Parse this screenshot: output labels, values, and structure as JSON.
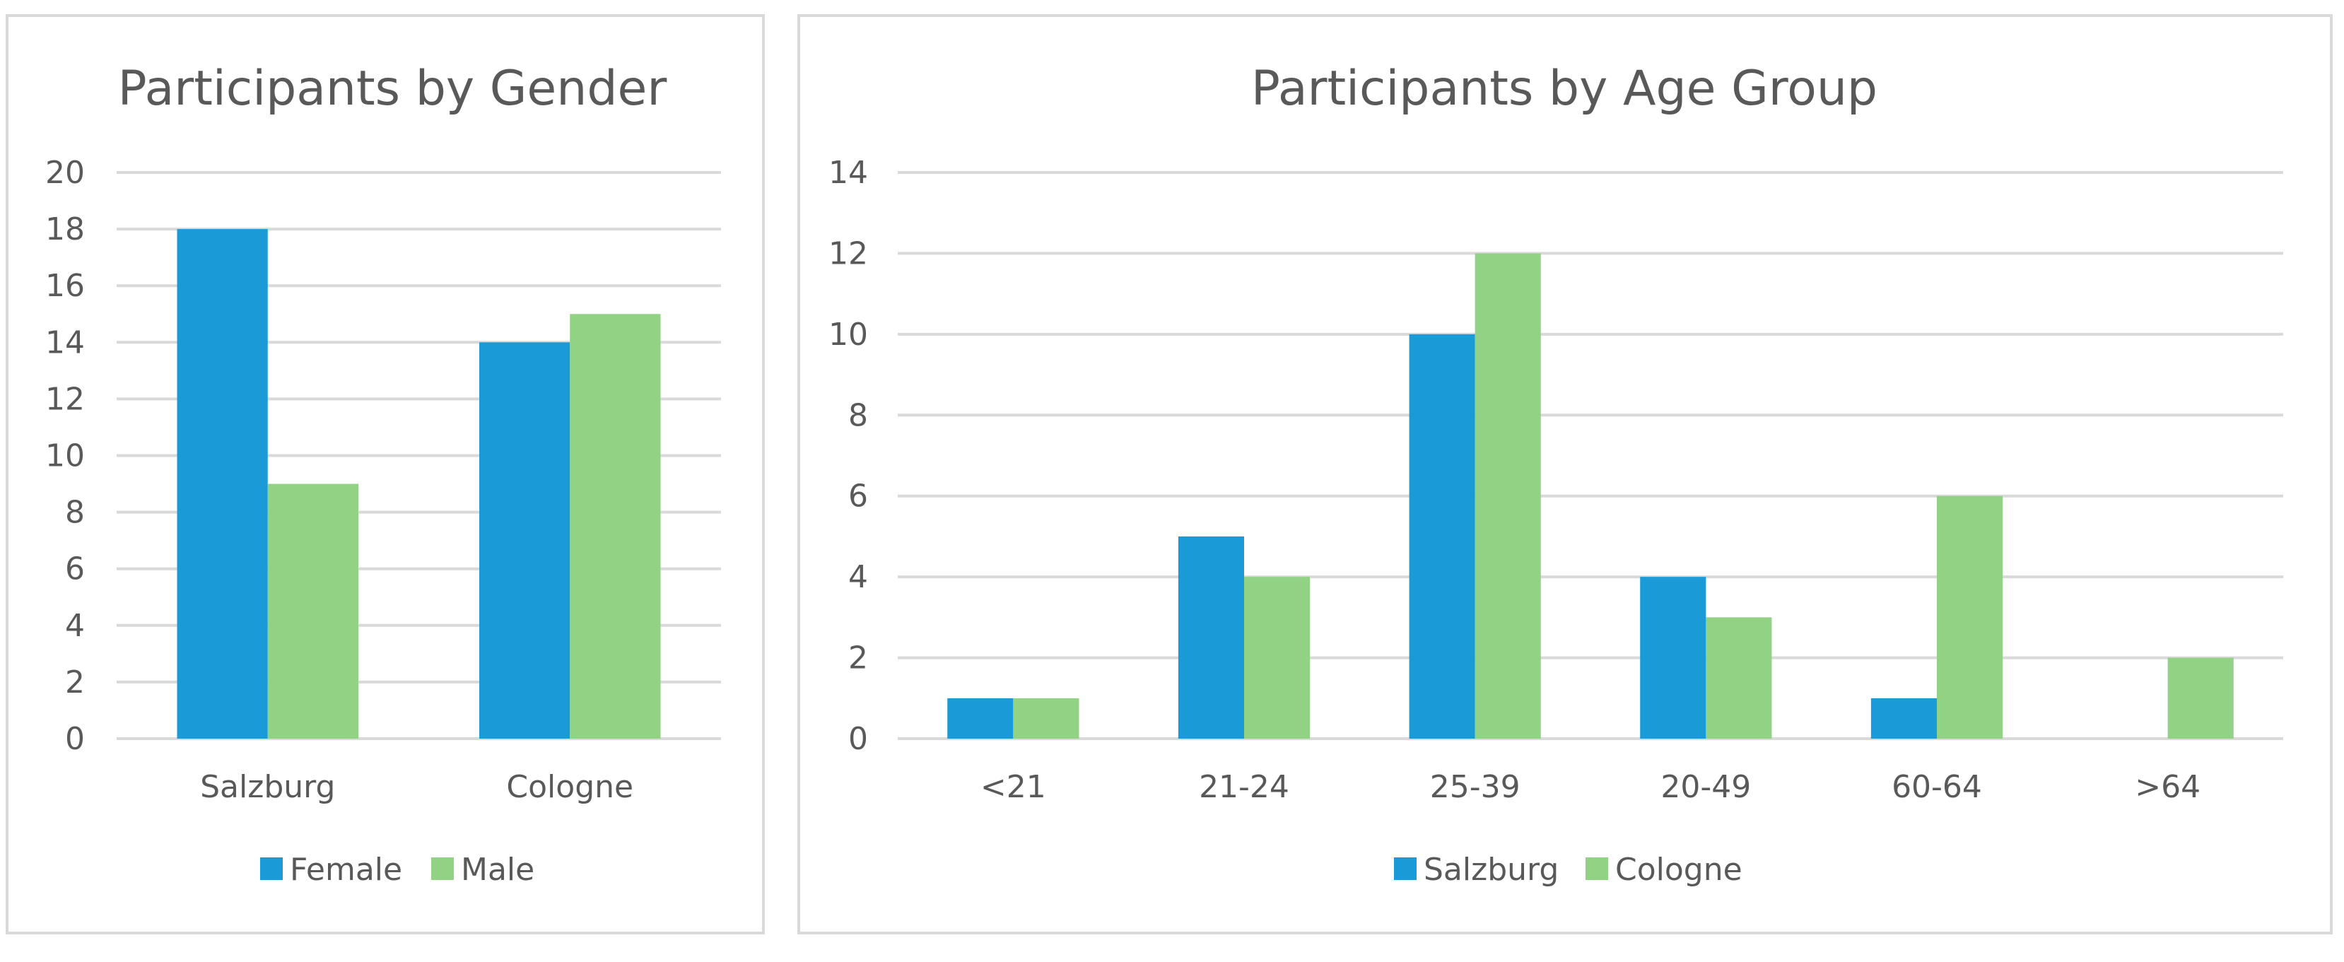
{
  "chart_data": [
    {
      "type": "bar",
      "title": "Participants by Gender",
      "categories": [
        "Salzburg",
        "Cologne"
      ],
      "series": [
        {
          "name": "Female",
          "values": [
            18,
            14
          ],
          "color": "#1a9bd7"
        },
        {
          "name": "Male",
          "values": [
            9,
            15
          ],
          "color": "#92d285"
        }
      ],
      "ylim": [
        0,
        20
      ],
      "yticks": [
        "0",
        "2",
        "4",
        "6",
        "8",
        "10",
        "12",
        "14",
        "16",
        "18",
        "20"
      ],
      "grid": true,
      "legend": "bottom"
    },
    {
      "type": "bar",
      "title": "Participants by Age Group",
      "categories": [
        "<21",
        "21-24",
        "25-39",
        "20-49",
        "60-64",
        ">64"
      ],
      "series": [
        {
          "name": "Salzburg",
          "values": [
            1,
            5,
            10,
            4,
            1,
            0
          ],
          "color": "#1a9bd7"
        },
        {
          "name": "Cologne",
          "values": [
            1,
            4,
            12,
            3,
            6,
            2
          ],
          "color": "#92d285"
        }
      ],
      "ylim": [
        0,
        14
      ],
      "yticks": [
        "0",
        "2",
        "4",
        "6",
        "8",
        "10",
        "12",
        "14"
      ],
      "grid": true,
      "legend": "bottom"
    }
  ]
}
